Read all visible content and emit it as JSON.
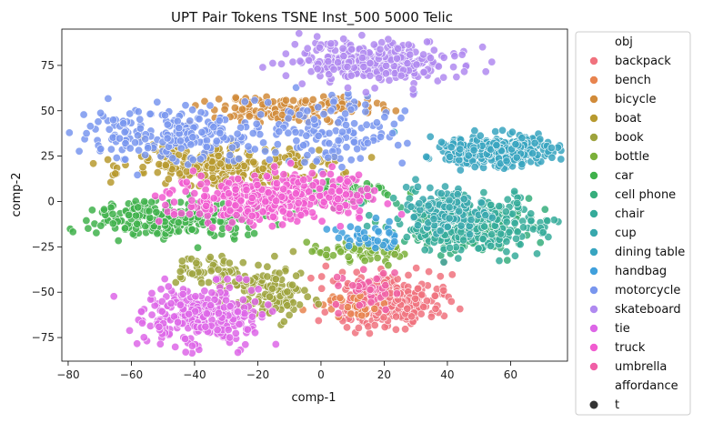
{
  "chart_data": {
    "type": "scatter",
    "title": "UPT Pair Tokens TSNE Inst_500 5000 Telic",
    "xlabel": "comp-1",
    "ylabel": "comp-2",
    "xlim": [
      -82,
      78
    ],
    "ylim": [
      -88,
      95
    ],
    "xticks": [
      -80,
      -60,
      -40,
      -20,
      0,
      20,
      40,
      60
    ],
    "yticks": [
      -75,
      -50,
      -25,
      0,
      25,
      50,
      75
    ],
    "grid": false,
    "legend_placement": "outside-right",
    "legend": {
      "hue_title": "obj",
      "style_title": "affordance",
      "style_entries": [
        {
          "label": "t",
          "color": "#333333"
        }
      ]
    },
    "series": [
      {
        "name": "backpack",
        "color": "#f0727e",
        "clusters": [
          {
            "cx": 22,
            "cy": -55,
            "sx": 9,
            "sy": 7,
            "n": 320
          }
        ]
      },
      {
        "name": "bench",
        "color": "#e8844f",
        "clusters": [
          {
            "cx": 10,
            "cy": -58,
            "sx": 5,
            "sy": 4,
            "n": 25
          }
        ]
      },
      {
        "name": "bicycle",
        "color": "#d18b3a",
        "clusters": [
          {
            "cx": -18,
            "cy": 50,
            "sx": 10,
            "sy": 4,
            "n": 90
          },
          {
            "cx": 5,
            "cy": 53,
            "sx": 7,
            "sy": 3,
            "n": 60
          }
        ]
      },
      {
        "name": "boat",
        "color": "#b79a2f",
        "clusters": [
          {
            "cx": -30,
            "cy": 20,
            "sx": 16,
            "sy": 5,
            "n": 260
          }
        ]
      },
      {
        "name": "book",
        "color": "#9ea33d",
        "clusters": [
          {
            "cx": -18,
            "cy": -50,
            "sx": 7,
            "sy": 8,
            "n": 130
          },
          {
            "cx": -35,
            "cy": -38,
            "sx": 5,
            "sy": 5,
            "n": 50
          }
        ]
      },
      {
        "name": "bottle",
        "color": "#7bb03a",
        "clusters": [
          {
            "cx": 10,
            "cy": -28,
            "sx": 8,
            "sy": 3,
            "n": 60
          }
        ]
      },
      {
        "name": "car",
        "color": "#3fb14b",
        "clusters": [
          {
            "cx": -47,
            "cy": -10,
            "sx": 14,
            "sy": 5,
            "n": 240
          },
          {
            "cx": 10,
            "cy": 5,
            "sx": 6,
            "sy": 4,
            "n": 50
          }
        ]
      },
      {
        "name": "cell phone",
        "color": "#36ae7c",
        "clusters": [
          {
            "cx": 45,
            "cy": -15,
            "sx": 10,
            "sy": 7,
            "n": 180
          }
        ]
      },
      {
        "name": "chair",
        "color": "#35ab9a",
        "clusters": [
          {
            "cx": 48,
            "cy": -12,
            "sx": 12,
            "sy": 8,
            "n": 260
          }
        ]
      },
      {
        "name": "cup",
        "color": "#38a8ad",
        "clusters": [
          {
            "cx": 40,
            "cy": -5,
            "sx": 7,
            "sy": 6,
            "n": 100
          }
        ]
      },
      {
        "name": "dining table",
        "color": "#38a5c0",
        "clusters": [
          {
            "cx": 55,
            "cy": 28,
            "sx": 9,
            "sy": 4,
            "n": 380
          }
        ]
      },
      {
        "name": "handbag",
        "color": "#40a0dc",
        "clusters": [
          {
            "cx": 15,
            "cy": -20,
            "sx": 6,
            "sy": 4,
            "n": 40
          }
        ]
      },
      {
        "name": "motorcycle",
        "color": "#7996ee",
        "clusters": [
          {
            "cx": -45,
            "cy": 38,
            "sx": 16,
            "sy": 7,
            "n": 220
          },
          {
            "cx": 5,
            "cy": 38,
            "sx": 10,
            "sy": 10,
            "n": 130
          }
        ]
      },
      {
        "name": "skateboard",
        "color": "#b08af0",
        "clusters": [
          {
            "cx": 18,
            "cy": 77,
            "sx": 12,
            "sy": 6,
            "n": 300
          }
        ]
      },
      {
        "name": "tie",
        "color": "#dd66e7",
        "clusters": [
          {
            "cx": -38,
            "cy": -62,
            "sx": 9,
            "sy": 9,
            "n": 280
          }
        ]
      },
      {
        "name": "truck",
        "color": "#f15cd0",
        "clusters": [
          {
            "cx": -18,
            "cy": 0,
            "sx": 14,
            "sy": 6,
            "n": 320
          },
          {
            "cx": 5,
            "cy": 5,
            "sx": 6,
            "sy": 5,
            "n": 60
          }
        ]
      },
      {
        "name": "umbrella",
        "color": "#f05fa6",
        "clusters": [
          {
            "cx": 15,
            "cy": -48,
            "sx": 6,
            "sy": 6,
            "n": 40
          }
        ]
      }
    ]
  }
}
